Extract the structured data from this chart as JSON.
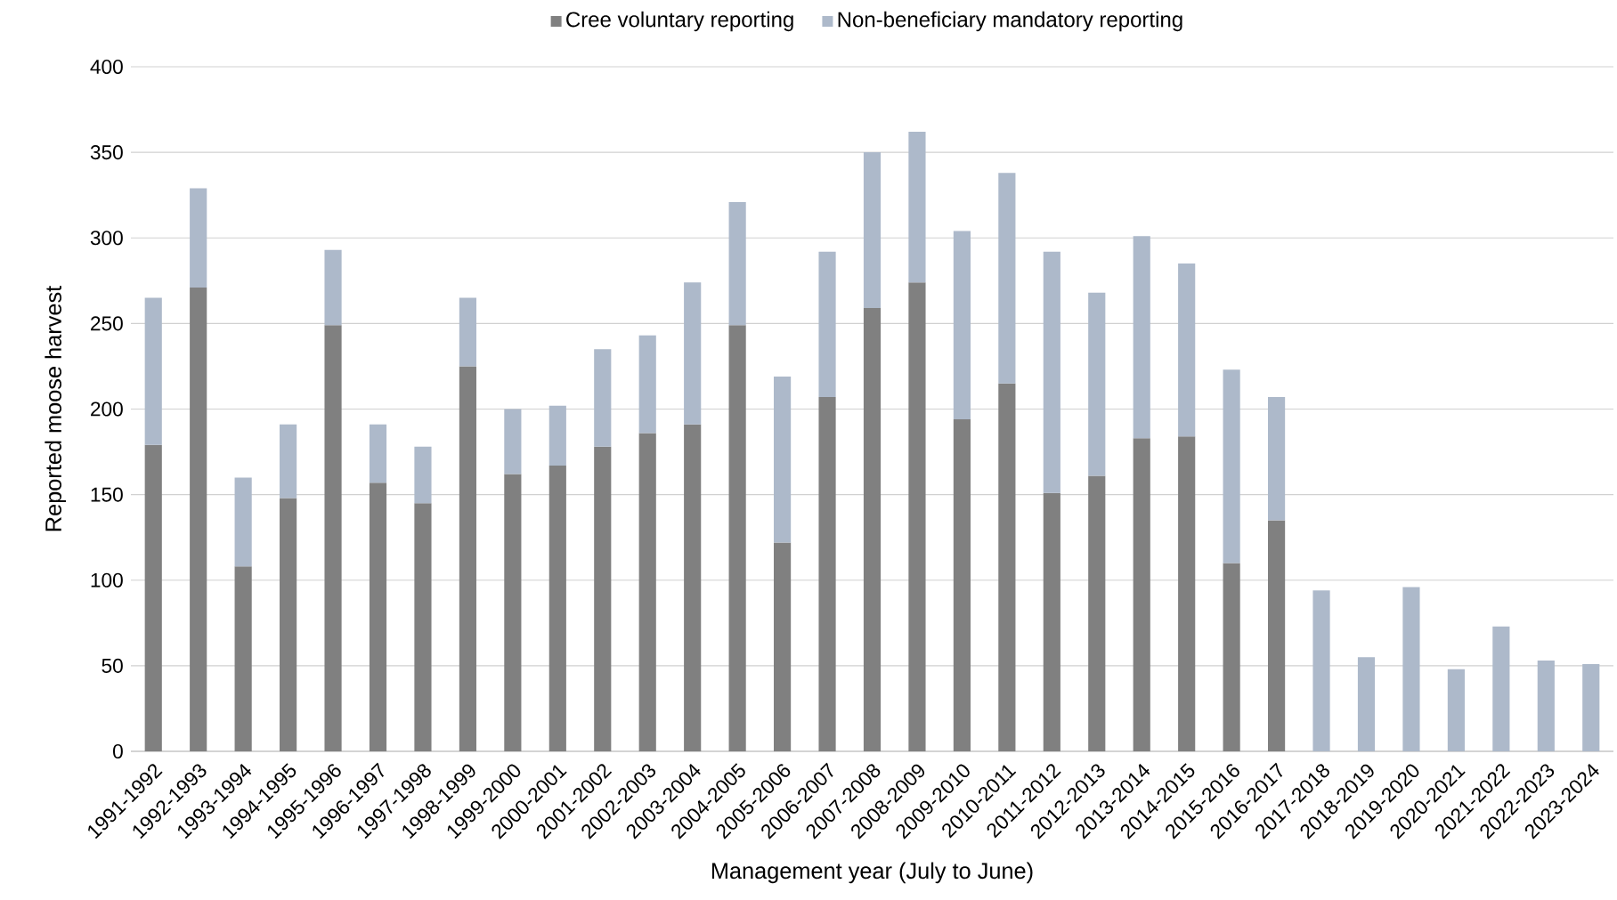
{
  "chart_data": {
    "type": "bar",
    "stacked": true,
    "xlabel": "Management year (July to June)",
    "ylabel": "Reported moose harvest",
    "categories": [
      "1991-1992",
      "1992-1993",
      "1993-1994",
      "1994-1995",
      "1995-1996",
      "1996-1997",
      "1997-1998",
      "1998-1999",
      "1999-2000",
      "2000-2001",
      "2001-2002",
      "2002-2003",
      "2003-2004",
      "2004-2005",
      "2005-2006",
      "2006-2007",
      "2007-2008",
      "2008-2009",
      "2009-2010",
      "2010-2011",
      "2011-2012",
      "2012-2013",
      "2013-2014",
      "2014-2015",
      "2015-2016",
      "2016-2017",
      "2017-2018",
      "2018-2019",
      "2019-2020",
      "2020-2021",
      "2021-2022",
      "2022-2023",
      "2023-2024"
    ],
    "series": [
      {
        "name": "Cree voluntary reporting",
        "color": "#808080",
        "values": [
          179,
          271,
          108,
          148,
          249,
          157,
          145,
          225,
          162,
          167,
          178,
          186,
          191,
          249,
          122,
          207,
          259,
          274,
          194,
          215,
          151,
          161,
          183,
          184,
          110,
          135,
          null,
          null,
          null,
          null,
          null,
          null,
          null
        ]
      },
      {
        "name": "Non-beneficiary mandatory reporting",
        "color": "#adb9ca",
        "values": [
          86,
          58,
          52,
          43,
          44,
          34,
          33,
          40,
          38,
          35,
          57,
          57,
          83,
          72,
          97,
          85,
          91,
          88,
          110,
          123,
          141,
          107,
          118,
          101,
          113,
          72,
          94,
          55,
          96,
          48,
          73,
          53,
          51
        ]
      }
    ],
    "ylim": [
      0,
      400
    ],
    "yticks": [
      0,
      50,
      100,
      150,
      200,
      250,
      300,
      350,
      400
    ],
    "grid": "y",
    "legend": "top"
  }
}
